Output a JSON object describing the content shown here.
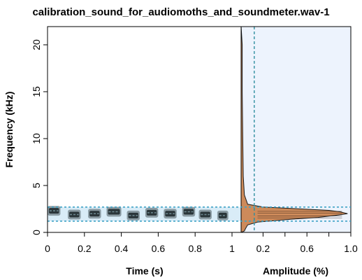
{
  "window": {
    "title": "calibration_sound_for_audiomoths_and_soundmeter.wav-1"
  },
  "chart_data": [
    {
      "type": "heatmap",
      "subtype": "spectrogram",
      "xlabel": "Time (s)",
      "ylabel": "Frequency (kHz)",
      "xlim": [
        0,
        1.05
      ],
      "ylim": [
        0,
        22
      ],
      "x_ticks": [
        "0",
        "0.2",
        "0.4",
        "0.6",
        "0.8",
        "1"
      ],
      "y_ticks": [
        "0",
        "5",
        "10",
        "15",
        "20"
      ],
      "grid": false,
      "selection_band_khz": [
        1.2,
        2.7
      ],
      "tones": [
        {
          "start": 0.0,
          "end": 0.07,
          "freq_khz": 2.3
        },
        {
          "start": 0.11,
          "end": 0.18,
          "freq_khz": 1.9
        },
        {
          "start": 0.22,
          "end": 0.29,
          "freq_khz": 2.0
        },
        {
          "start": 0.32,
          "end": 0.4,
          "freq_khz": 2.2
        },
        {
          "start": 0.43,
          "end": 0.5,
          "freq_khz": 1.8
        },
        {
          "start": 0.53,
          "end": 0.6,
          "freq_khz": 2.1
        },
        {
          "start": 0.63,
          "end": 0.7,
          "freq_khz": 2.0
        },
        {
          "start": 0.73,
          "end": 0.8,
          "freq_khz": 2.2
        },
        {
          "start": 0.82,
          "end": 0.89,
          "freq_khz": 1.9
        },
        {
          "start": 0.92,
          "end": 0.98,
          "freq_khz": 1.8
        }
      ]
    },
    {
      "type": "area",
      "subtype": "frequency-amplitude spectrum",
      "xlabel": "Amplitude (%)",
      "xlim": [
        0,
        1
      ],
      "x_ticks": [
        "0.2",
        "0.6",
        "1.0"
      ],
      "x_tick_values": [
        0.2,
        0.6,
        1.0
      ],
      "threshold_amplitude": 0.12,
      "shaded_band_khz": [
        1.2,
        2.7
      ],
      "spectrum": {
        "freq_khz": [
          0.0,
          0.15,
          0.4,
          0.8,
          1.1,
          1.4,
          1.6,
          1.8,
          2.0,
          2.2,
          2.35,
          2.5,
          2.7,
          3.0,
          4.0,
          6.0,
          10.0,
          15.0,
          20.0,
          22.0
        ],
        "amplitude": [
          0.0,
          0.03,
          0.04,
          0.06,
          0.15,
          0.45,
          0.7,
          0.85,
          0.97,
          0.9,
          0.8,
          0.55,
          0.2,
          0.06,
          0.03,
          0.02,
          0.015,
          0.01,
          0.01,
          0.0
        ]
      },
      "colors": {
        "fill": "#cd8a5a",
        "line": "#1a1a1a",
        "band": "#edf3fd",
        "threshold": "#2f8f9f"
      }
    }
  ]
}
